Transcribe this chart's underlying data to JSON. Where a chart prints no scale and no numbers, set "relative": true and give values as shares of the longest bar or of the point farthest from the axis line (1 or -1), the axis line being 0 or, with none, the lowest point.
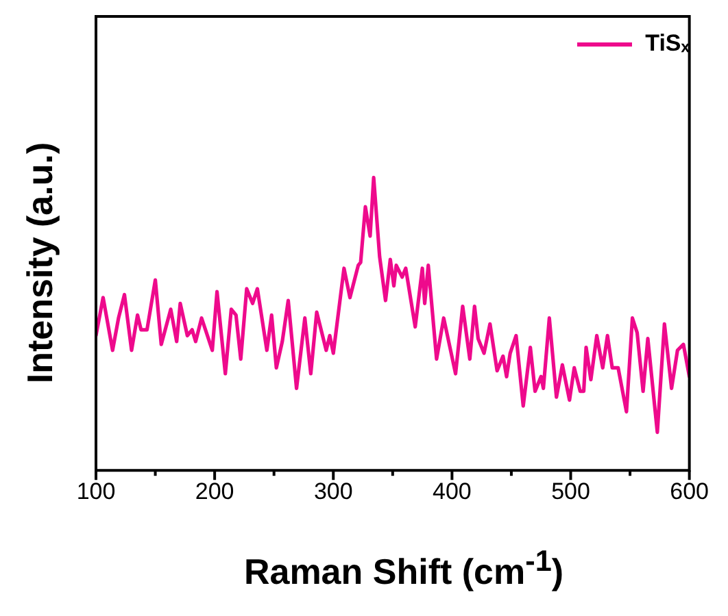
{
  "chart_data": {
    "type": "line",
    "relative": true,
    "xlabel": "Raman Shift (cm$^{-1}$)",
    "ylabel": "Intensity (a.u.)",
    "xlim": [
      100,
      600
    ],
    "xticks": [
      100,
      {
        "value": 150,
        "label": null
      },
      200,
      {
        "value": 250,
        "label": null
      },
      300,
      {
        "value": 350,
        "label": null
      },
      400,
      {
        "value": 450,
        "label": null
      },
      500,
      {
        "value": 550,
        "label": null
      },
      600
    ],
    "legend": "top right",
    "grid": false,
    "marker": "none",
    "line_style": "solid",
    "tick_labels": "x",
    "series": [
      {
        "name": "TiSₓ",
        "color": "#ee0a8c",
        "x": [
          100,
          106,
          114,
          119,
          124,
          130,
          135,
          138,
          143,
          150,
          155,
          163,
          168,
          171,
          177,
          181,
          184,
          189,
          198,
          202,
          209,
          214,
          218,
          222,
          227,
          232,
          236,
          244,
          248,
          252,
          257,
          262,
          269,
          276,
          281,
          286,
          294,
          297,
          300,
          309,
          314,
          321,
          323,
          327,
          331,
          334,
          339,
          344,
          348,
          351,
          353,
          358,
          361,
          369,
          375,
          377,
          380,
          387,
          393,
          403,
          409,
          415,
          419,
          422,
          427,
          432,
          438,
          443,
          446,
          449,
          454,
          460,
          466,
          470,
          475,
          477,
          482,
          488,
          493,
          499,
          503,
          508,
          511,
          513,
          517,
          522,
          527,
          531,
          535,
          540,
          547,
          552,
          556,
          561,
          565,
          573,
          579,
          585,
          590,
          595,
          600
        ],
        "values": [
          0.46,
          0.59,
          0.41,
          0.52,
          0.6,
          0.41,
          0.53,
          0.48,
          0.48,
          0.65,
          0.43,
          0.55,
          0.44,
          0.57,
          0.46,
          0.48,
          0.44,
          0.52,
          0.41,
          0.61,
          0.33,
          0.55,
          0.53,
          0.38,
          0.62,
          0.57,
          0.62,
          0.41,
          0.53,
          0.35,
          0.44,
          0.58,
          0.28,
          0.52,
          0.33,
          0.54,
          0.41,
          0.46,
          0.4,
          0.69,
          0.59,
          0.7,
          0.71,
          0.9,
          0.8,
          1.0,
          0.73,
          0.58,
          0.72,
          0.63,
          0.7,
          0.66,
          0.69,
          0.49,
          0.69,
          0.57,
          0.7,
          0.38,
          0.52,
          0.33,
          0.56,
          0.38,
          0.56,
          0.45,
          0.4,
          0.5,
          0.34,
          0.39,
          0.32,
          0.4,
          0.46,
          0.22,
          0.42,
          0.27,
          0.32,
          0.28,
          0.52,
          0.25,
          0.36,
          0.24,
          0.35,
          0.27,
          0.27,
          0.42,
          0.31,
          0.46,
          0.35,
          0.46,
          0.35,
          0.35,
          0.2,
          0.52,
          0.47,
          0.27,
          0.45,
          0.13,
          0.5,
          0.28,
          0.41,
          0.43,
          0.32
        ]
      }
    ]
  }
}
